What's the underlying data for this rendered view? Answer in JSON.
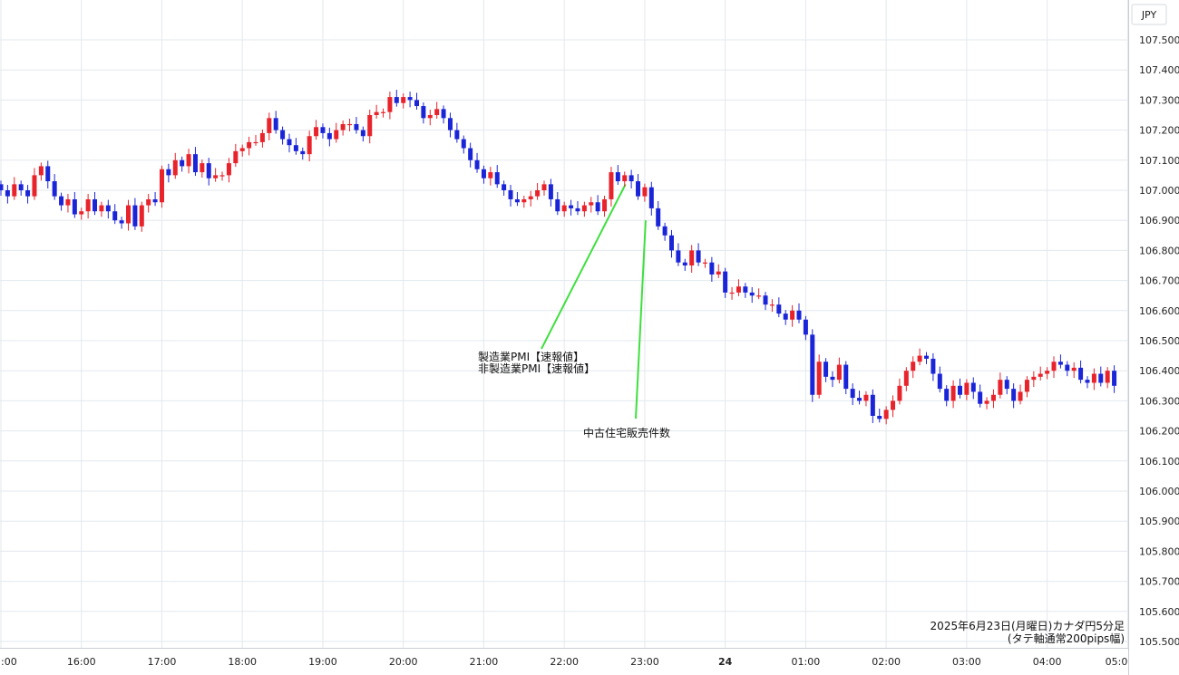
{
  "chart_data": {
    "type": "candlestick",
    "currency_label": "JPY",
    "caption": [
      "2025年6月23日(月曜日)カナダ円5分足",
      "(タテ軸通常200pips幅)"
    ],
    "ylim": [
      105.5,
      107.55
    ],
    "y_ticks": [
      "107.500",
      "107.400",
      "107.300",
      "107.200",
      "107.100",
      "107.000",
      "106.900",
      "106.800",
      "106.700",
      "106.600",
      "106.500",
      "106.400",
      "106.300",
      "106.200",
      "106.100",
      "106.000",
      "105.900",
      "105.800",
      "105.700",
      "105.600",
      "105.500"
    ],
    "x_ticks": [
      {
        "label": ":00",
        "t": 0,
        "bold": false
      },
      {
        "label": "16:00",
        "t": 12,
        "bold": false
      },
      {
        "label": "17:00",
        "t": 24,
        "bold": false
      },
      {
        "label": "18:00",
        "t": 36,
        "bold": false
      },
      {
        "label": "19:00",
        "t": 48,
        "bold": false
      },
      {
        "label": "20:00",
        "t": 60,
        "bold": false
      },
      {
        "label": "21:00",
        "t": 72,
        "bold": false
      },
      {
        "label": "22:00",
        "t": 84,
        "bold": false
      },
      {
        "label": "23:00",
        "t": 96,
        "bold": false
      },
      {
        "label": "24",
        "t": 108,
        "bold": true
      },
      {
        "label": "01:00",
        "t": 120,
        "bold": false
      },
      {
        "label": "02:00",
        "t": 132,
        "bold": false
      },
      {
        "label": "03:00",
        "t": 144,
        "bold": false
      },
      {
        "label": "04:00",
        "t": 156,
        "bold": false
      },
      {
        "label": "05:0",
        "t": 168,
        "bold": false
      }
    ],
    "colors": {
      "up": "#e8232b",
      "down": "#1b25d8",
      "annotation_line": "#3ee03e",
      "grid": "#e3e8ee"
    },
    "annotations": [
      {
        "lines": [
          "製造業PMI【速報値】",
          "非製造業PMI【速報値】"
        ],
        "t": 93,
        "price": 107.02
      },
      {
        "lines": [
          "中古住宅販売件数"
        ],
        "t": 96,
        "price": 106.9
      }
    ],
    "closes": [
      107.0,
      106.98,
      107.02,
      107.0,
      106.98,
      107.05,
      107.08,
      107.03,
      106.98,
      106.95,
      106.97,
      106.92,
      106.93,
      106.97,
      106.93,
      106.95,
      106.93,
      106.9,
      106.89,
      106.95,
      106.88,
      106.95,
      106.97,
      106.96,
      107.07,
      107.05,
      107.1,
      107.08,
      107.12,
      107.06,
      107.09,
      107.04,
      107.05,
      107.05,
      107.09,
      107.13,
      107.14,
      107.16,
      107.16,
      107.19,
      107.24,
      107.2,
      107.17,
      107.15,
      107.13,
      107.12,
      107.18,
      107.21,
      107.19,
      107.17,
      107.2,
      107.22,
      107.22,
      107.2,
      107.18,
      107.25,
      107.26,
      107.26,
      107.31,
      107.29,
      107.31,
      107.3,
      107.28,
      107.24,
      107.25,
      107.27,
      107.24,
      107.2,
      107.17,
      107.14,
      107.1,
      107.07,
      107.04,
      107.06,
      107.02,
      107.0,
      106.97,
      106.96,
      106.97,
      106.98,
      107.0,
      107.02,
      106.97,
      106.93,
      106.95,
      106.94,
      106.93,
      106.95,
      106.96,
      106.93,
      106.97,
      107.06,
      107.03,
      107.05,
      107.03,
      106.98,
      107.01,
      106.94,
      106.88,
      106.85,
      106.8,
      106.76,
      106.75,
      106.8,
      106.76,
      106.76,
      106.72,
      106.73,
      106.66,
      106.66,
      106.68,
      106.66,
      106.65,
      106.65,
      106.62,
      106.62,
      106.59,
      106.57,
      106.6,
      106.57,
      106.52,
      106.32,
      106.43,
      106.38,
      106.37,
      106.42,
      106.34,
      106.31,
      106.3,
      106.32,
      106.25,
      106.24,
      106.27,
      106.3,
      106.35,
      106.4,
      106.43,
      106.45,
      106.44,
      106.39,
      106.34,
      106.3,
      106.35,
      106.32,
      106.36,
      106.33,
      106.29,
      106.3,
      106.32,
      106.37,
      106.34,
      106.3,
      106.33,
      106.37,
      106.38,
      106.39,
      106.4,
      106.43,
      106.42,
      106.4,
      106.41,
      106.37,
      106.36,
      106.39,
      106.36,
      106.4,
      106.35
    ]
  }
}
